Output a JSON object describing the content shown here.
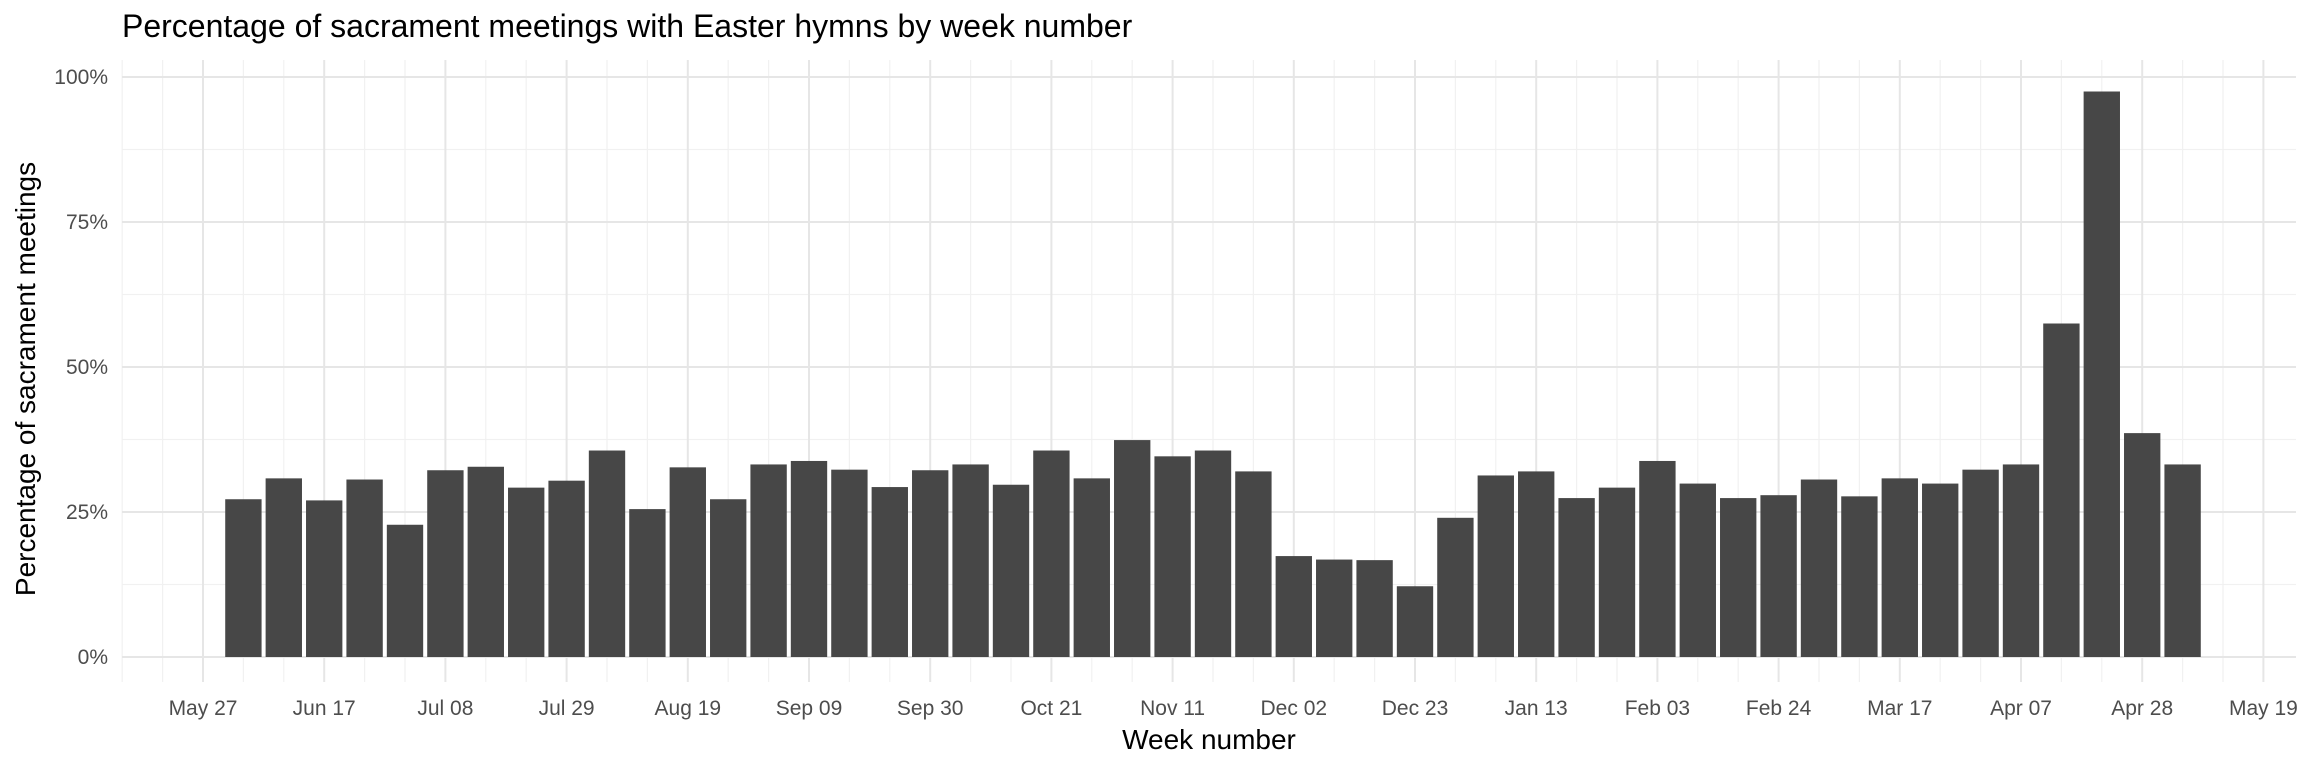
{
  "chart_data": {
    "type": "bar",
    "title": "Percentage of sacrament meetings with Easter hymns by week number",
    "xlabel": "Week number",
    "ylabel": "Percentage of sacrament meetings",
    "ylim": [
      0,
      1.0
    ],
    "y_ticks": [
      0,
      0.25,
      0.5,
      0.75,
      1.0
    ],
    "y_tick_labels": [
      "0%",
      "25%",
      "50%",
      "75%",
      "100%"
    ],
    "x_tick_labels": [
      "May 27",
      "Jun 17",
      "Jul 08",
      "Jul 29",
      "Aug 19",
      "Sep 09",
      "Sep 30",
      "Oct 21",
      "Nov 11",
      "Dec 02",
      "Dec 23",
      "Jan 13",
      "Feb 03",
      "Feb 24",
      "Mar 17",
      "Apr 07",
      "Apr 28",
      "May 19"
    ],
    "x_range": [
      "May 20",
      "May 26"
    ],
    "first_bar_week": "Jun 03",
    "grid": true,
    "bar_color": "#474747",
    "values": [
      0.272,
      0.308,
      0.27,
      0.306,
      0.228,
      0.322,
      0.328,
      0.292,
      0.304,
      0.356,
      0.255,
      0.327,
      0.272,
      0.332,
      0.338,
      0.323,
      0.293,
      0.322,
      0.332,
      0.297,
      0.356,
      0.308,
      0.374,
      0.346,
      0.356,
      0.32,
      0.174,
      0.168,
      0.167,
      0.122,
      0.24,
      0.313,
      0.32,
      0.274,
      0.292,
      0.338,
      0.299,
      0.274,
      0.279,
      0.306,
      0.277,
      0.308,
      0.299,
      0.323,
      0.332,
      0.575,
      0.975,
      0.386,
      0.332
    ]
  }
}
